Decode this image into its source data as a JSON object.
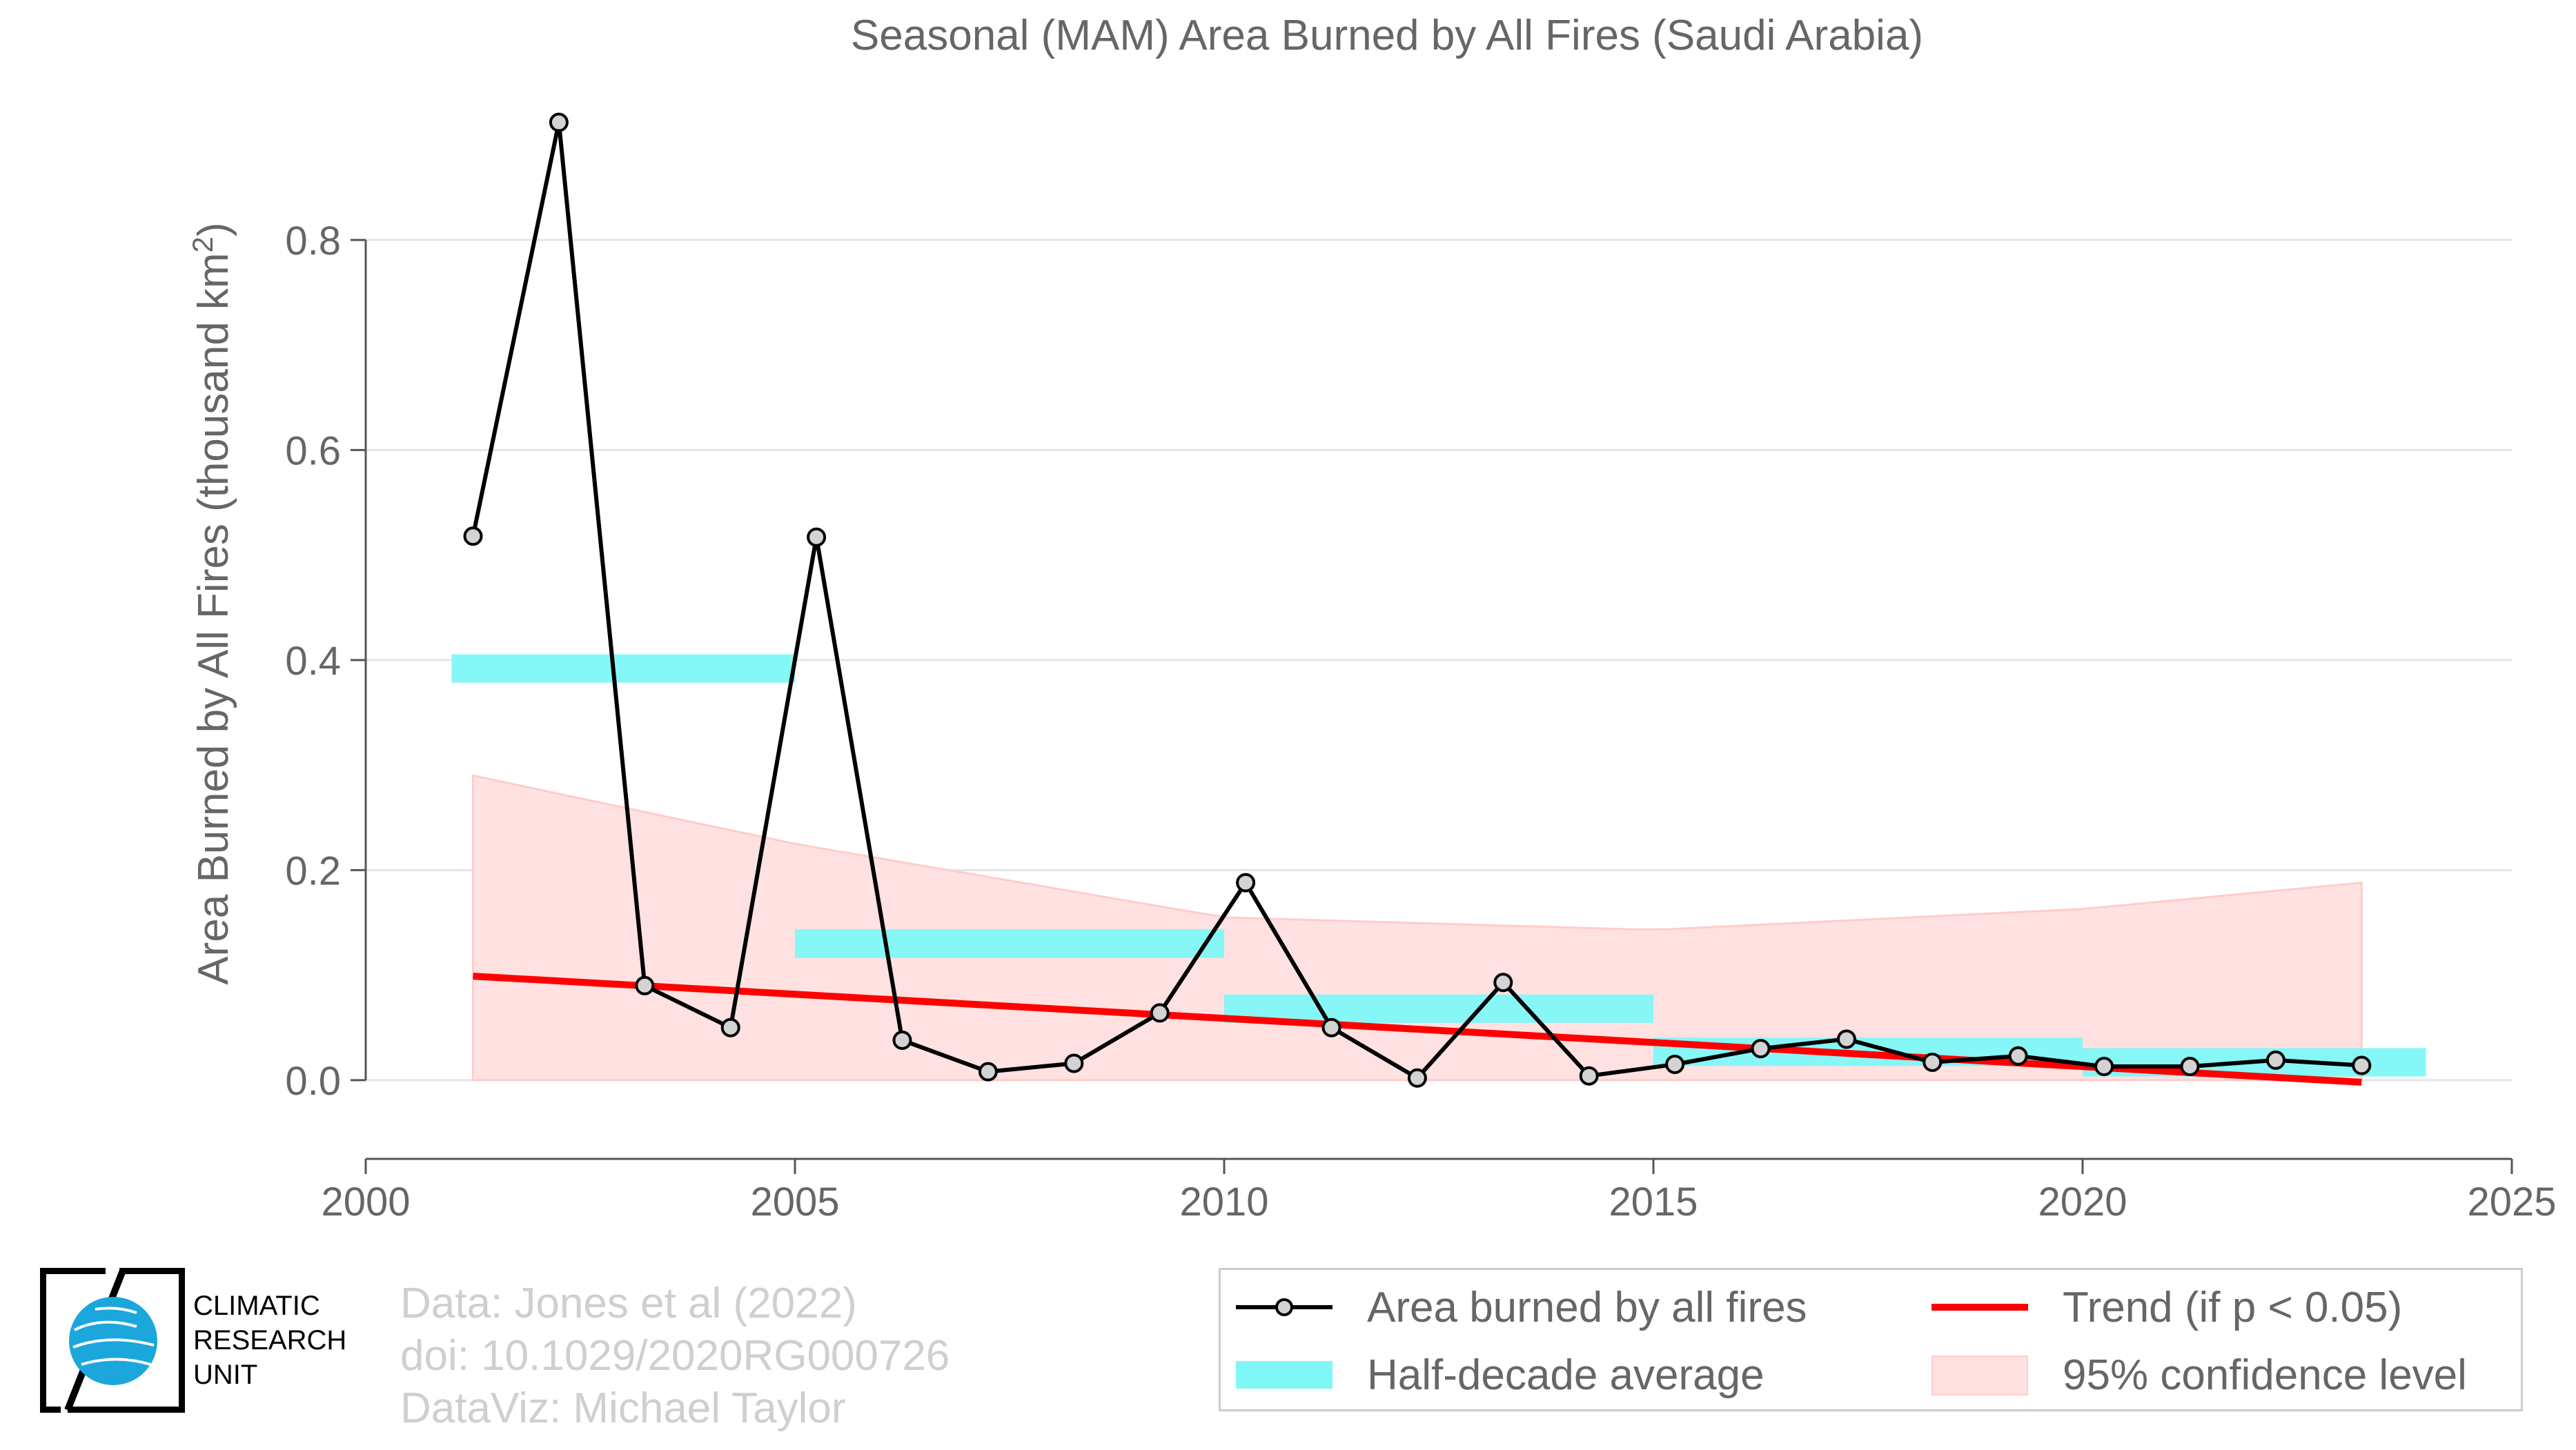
{
  "chart_data": {
    "type": "line",
    "title": "Seasonal (MAM) Area Burned by All Fires (Saudi Arabia)",
    "ylabel": "Area Burned by All Fires (thousand km",
    "ylabel_sup": "2",
    "ylabel_end": ")",
    "xlim": [
      2000,
      2025
    ],
    "ylim": [
      -0.075,
      0.93
    ],
    "xticks": [
      2000,
      2005,
      2010,
      2015,
      2020,
      2025
    ],
    "yticks": [
      0.0,
      0.2,
      0.4,
      0.6,
      0.8
    ],
    "ytick_labels": [
      "0.0",
      "0.2",
      "0.4",
      "0.6",
      "0.8"
    ],
    "grid": "horizontal",
    "series": [
      {
        "name": "Area burned by all fires",
        "x": [
          2001.25,
          2002.25,
          2003.25,
          2004.25,
          2005.25,
          2006.25,
          2007.25,
          2008.25,
          2009.25,
          2010.25,
          2011.25,
          2012.25,
          2013.25,
          2014.25,
          2015.25,
          2016.25,
          2017.25,
          2018.25,
          2019.25,
          2020.25,
          2021.25,
          2022.25,
          2023.25
        ],
        "y": [
          0.518,
          0.912,
          0.09,
          0.05,
          0.517,
          0.038,
          0.008,
          0.016,
          0.064,
          0.188,
          0.05,
          0.002,
          0.093,
          0.004,
          0.015,
          0.03,
          0.039,
          0.017,
          0.023,
          0.013,
          0.013,
          0.019,
          0.014
        ],
        "color": "#000000"
      }
    ],
    "half_decade_average": {
      "name": "Half-decade average",
      "color": "#7ff7f7",
      "segments": [
        {
          "x0": 2001.0,
          "x1": 2005.0,
          "y": 0.392
        },
        {
          "x0": 2005.0,
          "x1": 2010.0,
          "y": 0.13
        },
        {
          "x0": 2010.0,
          "x1": 2015.0,
          "y": 0.068
        },
        {
          "x0": 2015.0,
          "x1": 2020.0,
          "y": 0.027
        },
        {
          "x0": 2020.0,
          "x1": 2024.0,
          "y": 0.017
        }
      ]
    },
    "trend": {
      "name": "Trend (if p < 0.05)",
      "color": "#ff0000",
      "x": [
        2001.25,
        2023.25
      ],
      "y": [
        0.099,
        -0.002
      ]
    },
    "confidence": {
      "name": "95% confidence level",
      "color": "#ffb3b3",
      "x": [
        2001.25,
        2005.0,
        2010.0,
        2015.0,
        2020.0,
        2023.25
      ],
      "upper": [
        0.29,
        0.225,
        0.155,
        0.143,
        0.163,
        0.188
      ],
      "lower": [
        0.0,
        0.0,
        0.0,
        0.0,
        0.0,
        0.0
      ]
    }
  },
  "credits": {
    "line1": "Data: Jones et al (2022)",
    "line2": "doi: 10.1029/2020RG000726",
    "line3": "DataViz: Michael Taylor"
  },
  "logo": {
    "line1": "CLIMATIC",
    "line2": "RESEARCH",
    "line3": "UNIT"
  },
  "legend": {
    "line": "Area burned by all fires",
    "bar": "Half-decade average",
    "trend": "Trend (if p < 0.05)",
    "ci": "95% confidence level"
  }
}
